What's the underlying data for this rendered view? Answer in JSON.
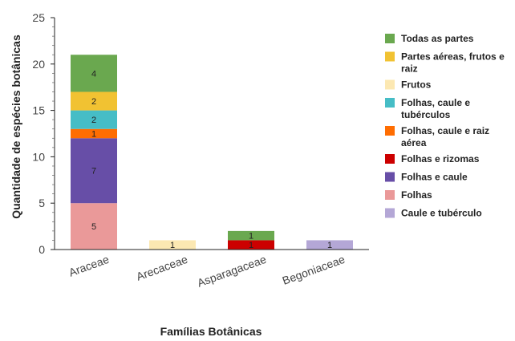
{
  "chart_data": {
    "type": "bar",
    "stacked": true,
    "categories": [
      "Araceae",
      "Arecaceae",
      "Asparagaceae",
      "Begoniaceae"
    ],
    "series": [
      {
        "name": "Folhas",
        "color": "#ea9999",
        "values": [
          5,
          0,
          0,
          0
        ]
      },
      {
        "name": "Folhas e caule",
        "color": "#674ea7",
        "values": [
          7,
          0,
          0,
          0
        ]
      },
      {
        "name": "Folhas e rizomas",
        "color": "#cc0000",
        "values": [
          0,
          0,
          1,
          0
        ]
      },
      {
        "name": "Folhas, caule e raiz aérea",
        "color": "#ff6d01",
        "values": [
          1,
          0,
          0,
          0
        ]
      },
      {
        "name": "Folhas, caule e tubérculos",
        "color": "#46bdc6",
        "values": [
          2,
          0,
          0,
          0
        ]
      },
      {
        "name": "Frutos",
        "color": "#fce8b2",
        "values": [
          0,
          1,
          0,
          0
        ]
      },
      {
        "name": "Partes aéreas, frutos e raiz",
        "color": "#f1c232",
        "values": [
          2,
          0,
          0,
          0
        ]
      },
      {
        "name": "Todas as partes",
        "color": "#6aa84f",
        "values": [
          4,
          0,
          1,
          0
        ]
      },
      {
        "name": "Caule e tubérculo",
        "color": "#b4a7d6",
        "values": [
          0,
          0,
          0,
          1
        ]
      }
    ],
    "legend_order": [
      {
        "name": "Todas as partes",
        "lines": [
          "Todas as partes"
        ]
      },
      {
        "name": "Partes aéreas, frutos e raiz",
        "lines": [
          "Partes aéreas, frutos e",
          "raiz"
        ]
      },
      {
        "name": "Frutos",
        "lines": [
          "Frutos"
        ]
      },
      {
        "name": "Folhas, caule e tubérculos",
        "lines": [
          "Folhas, caule e",
          "tubérculos"
        ]
      },
      {
        "name": "Folhas, caule e raiz aérea",
        "lines": [
          "Folhas, caule e raiz",
          "aérea"
        ]
      },
      {
        "name": "Folhas e rizomas",
        "lines": [
          "Folhas e rizomas"
        ]
      },
      {
        "name": "Folhas e caule",
        "lines": [
          "Folhas e caule"
        ]
      },
      {
        "name": "Folhas",
        "lines": [
          "Folhas"
        ]
      },
      {
        "name": "Caule e tubérculo",
        "lines": [
          "Caule e tubérculo"
        ]
      }
    ],
    "xlabel": "Famílias Botânicas",
    "ylabel": "Quantidade de espécies botânicas",
    "ylim": [
      0,
      25
    ],
    "yticks": [
      0,
      5,
      10,
      15,
      20,
      25
    ],
    "legend_position": "right",
    "grid": false,
    "data_labels": true
  }
}
